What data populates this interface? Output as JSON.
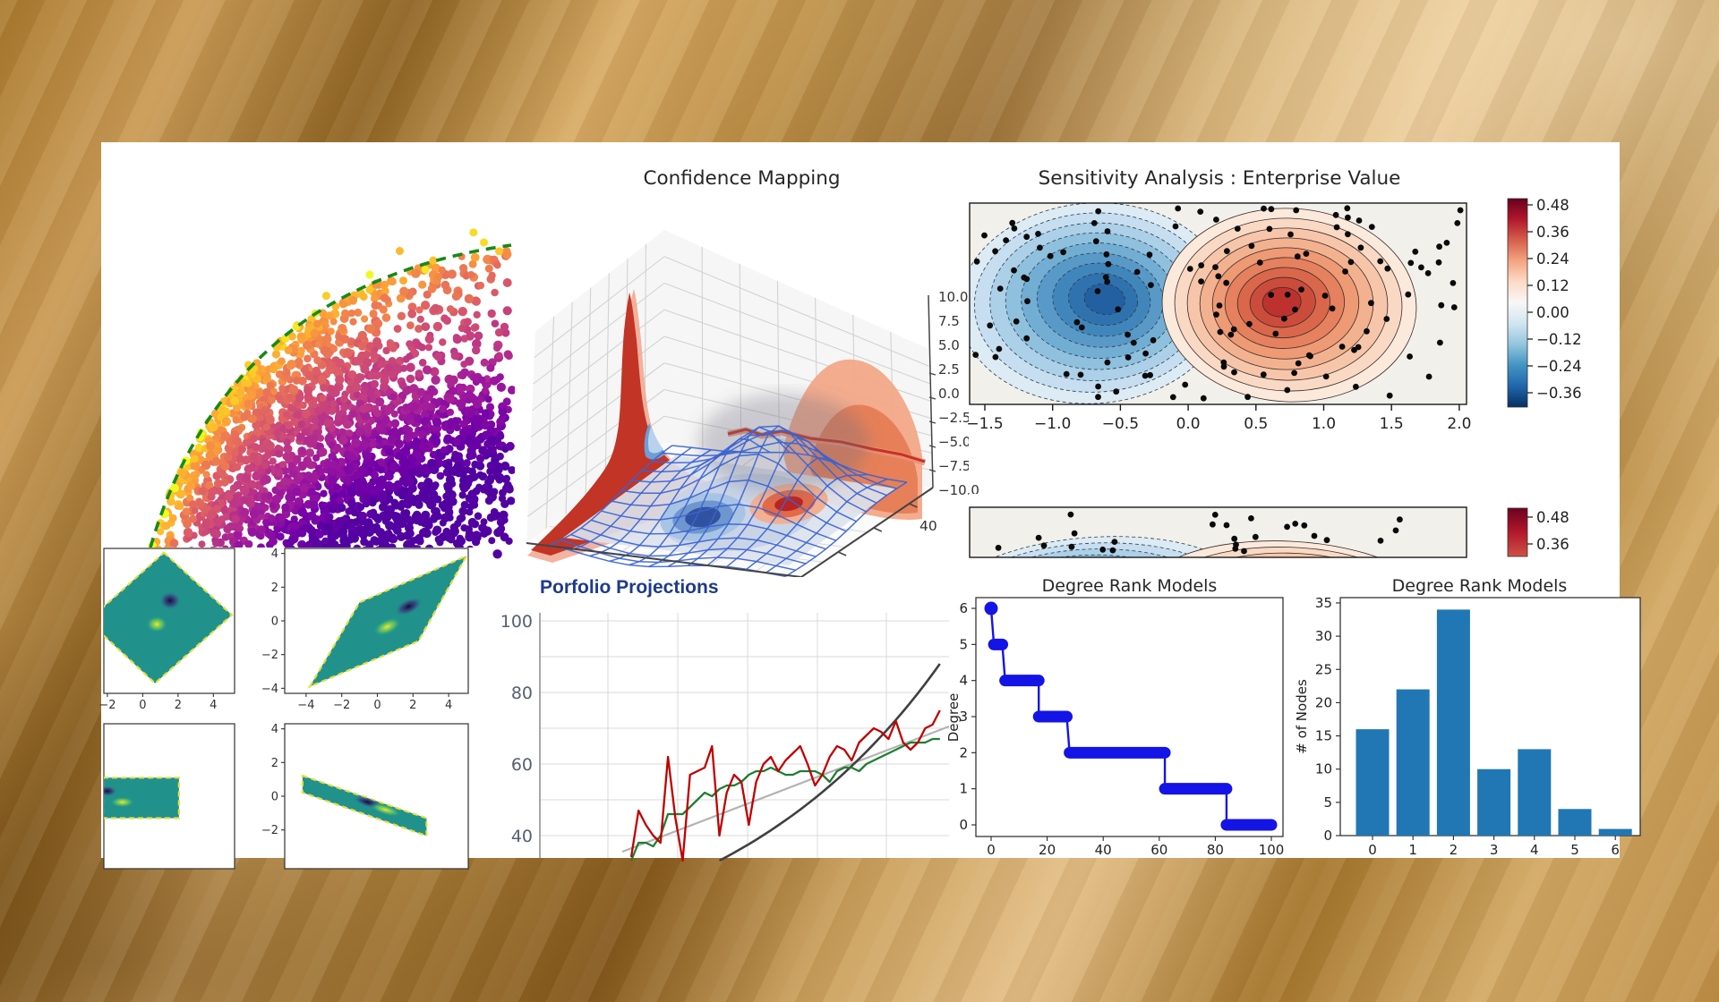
{
  "chart_data": [
    {
      "type": "scatter",
      "title": "",
      "colormap": "plasma",
      "description": "dense 2D point cloud bounded on the upper-left by a green dashed arc; color grades yellow at the arc to deep purple at lower right",
      "points": 2300,
      "outlier_points": 14,
      "boundary_color": "#168a16",
      "point_colors": [
        "#f0f921",
        "#fdc926",
        "#fb9f3a",
        "#ed7953",
        "#d8576b",
        "#bd3786",
        "#9c179e",
        "#7201a8",
        "#46039f",
        "#0d0887"
      ],
      "seed": 11
    },
    {
      "type": "3d-surface",
      "title": "Confidence Mapping",
      "z_ticks": [
        "10.0",
        "7.5",
        "5.0",
        "2.5",
        "0.0",
        "−2.5",
        "−5.0",
        "−7.5",
        "−10.0"
      ],
      "x_ticks": [
        "40"
      ],
      "wireframe_color": "#3b63d4",
      "wall_projection_colors": {
        "left_kde": "#c23425",
        "left_kde_light": "#f0a088",
        "left_kde_notch": "#6d9ed6",
        "right_hill": "#f3a888",
        "right_hill_core": "#e4784f",
        "ridge": "#c8321f",
        "floor_negative": "#31529e",
        "floor_positive": "#b92424"
      }
    },
    {
      "type": "contour",
      "title": "Sensitivity Analysis : Enterprise Value",
      "x_ticks": [
        "−1.5",
        "−1.0",
        "−0.5",
        "0.0",
        "0.5",
        "1.0",
        "1.5",
        "2.0"
      ],
      "xlim": [
        -1.6,
        2.05
      ],
      "colorbar_ticks": [
        "0.48",
        "0.36",
        "0.24",
        "0.12",
        "0.00",
        "−0.12",
        "−0.24",
        "−0.36"
      ],
      "colorbar_colors": [
        "#67001f",
        "#b2182b",
        "#d6604d",
        "#f4a582",
        "#fddbc7",
        "#f7f7f7",
        "#d1e5f0",
        "#92c5de",
        "#4393c3",
        "#2166ac",
        "#053061"
      ],
      "negative_center": {
        "x": -0.7,
        "core_color": "#2260a2"
      },
      "positive_center": {
        "x": 0.75,
        "core_color": "#a81c28"
      },
      "blue_levels": [
        "#dcebf4",
        "#c6def0",
        "#abd0e7",
        "#8fc0dd",
        "#72aed3",
        "#5899c7",
        "#4186bb",
        "#2f72ae",
        "#2260a2"
      ],
      "red_levels": [
        "#fbe9dc",
        "#f9d9c4",
        "#f7c6aa",
        "#f3b28f",
        "#ee9a75",
        "#e5815e",
        "#da674b",
        "#cc4c3b",
        "#bd322f"
      ],
      "overlay_points": 135,
      "levels": 9,
      "seed": 5
    },
    {
      "type": "contour",
      "title": "",
      "cropped": true,
      "colorbar_ticks": [
        "0.48",
        "0.36"
      ],
      "overlay_points": 26,
      "seed": 9
    },
    {
      "type": "heatmap",
      "fill_color": "#21918c",
      "edge_color": "#e4e13c",
      "blob_colors": {
        "negative": "#160a3e",
        "positive": "#f6e626"
      },
      "panels": [
        {
          "x_ticks": [
            "−2",
            "0",
            "2",
            "4"
          ],
          "x_tick_vals": [
            -2,
            0,
            2,
            4
          ],
          "y_ticks": [],
          "y_tick_vals": [],
          "xlim": [
            -2.2,
            5.2
          ],
          "ylim": [
            -4.3,
            4.3
          ],
          "polygon": [
            [
              1.2,
              4.05
            ],
            [
              5.05,
              0.35
            ],
            [
              0.7,
              -3.7
            ],
            [
              -3.1,
              0.0
            ]
          ],
          "blob_neg": {
            "c": [
              1.55,
              1.2
            ],
            "r": [
              0.62,
              0.55
            ],
            "rot": 0
          },
          "blob_pos": {
            "c": [
              0.8,
              -0.2
            ],
            "r": [
              0.62,
              0.5
            ],
            "rot": 0
          }
        },
        {
          "x_ticks": [
            "−4",
            "−2",
            "0",
            "2",
            "4"
          ],
          "x_tick_vals": [
            -4,
            -2,
            0,
            2,
            4
          ],
          "y_ticks": [
            "4",
            "2",
            "0",
            "−2",
            "−4"
          ],
          "y_tick_vals": [
            4,
            2,
            0,
            -2,
            -4
          ],
          "xlim": [
            -5.2,
            5.1
          ],
          "ylim": [
            -4.3,
            4.3
          ],
          "polygon": [
            [
              -3.8,
              -3.9
            ],
            [
              -1.0,
              1.1
            ],
            [
              5.0,
              3.85
            ],
            [
              2.3,
              -1.2
            ]
          ],
          "blob_neg": {
            "c": [
              1.75,
              0.85
            ],
            "r": [
              0.85,
              0.45
            ],
            "rot": 25
          },
          "blob_pos": {
            "c": [
              0.55,
              -0.35
            ],
            "r": [
              0.85,
              0.45
            ],
            "rot": 25
          }
        },
        {
          "x_ticks": [],
          "x_tick_vals": [],
          "y_ticks": [],
          "y_tick_vals": [],
          "xlim": [
            -2.2,
            5.2
          ],
          "ylim": [
            -4.3,
            4.3
          ],
          "polygon": [
            [
              -2.25,
              1.1
            ],
            [
              2.05,
              1.1
            ],
            [
              2.05,
              -1.3
            ],
            [
              -2.25,
              -1.3
            ]
          ],
          "blob_neg": {
            "c": [
              -2.0,
              0.3
            ],
            "r": [
              0.55,
              0.32
            ],
            "rot": 0
          },
          "blob_pos": {
            "c": [
              -1.15,
              -0.35
            ],
            "r": [
              0.7,
              0.32
            ],
            "rot": 0
          }
        },
        {
          "x_ticks": [],
          "x_tick_vals": [],
          "y_ticks": [
            "4",
            "2",
            "0",
            "−2"
          ],
          "y_tick_vals": [
            4,
            2,
            0,
            -2
          ],
          "xlim": [
            -5.2,
            5.1
          ],
          "ylim": [
            -4.3,
            4.3
          ],
          "polygon": [
            [
              -4.2,
              1.22
            ],
            [
              2.76,
              -1.3
            ],
            [
              2.76,
              -2.35
            ],
            [
              -4.2,
              0.22
            ]
          ],
          "blob_neg": {
            "c": [
              -0.55,
              -0.35
            ],
            "r": [
              0.85,
              0.3
            ],
            "rot": -17
          },
          "blob_pos": {
            "c": [
              0.45,
              -0.8
            ],
            "r": [
              0.95,
              0.3
            ],
            "rot": -17
          }
        }
      ]
    },
    {
      "type": "line",
      "title": "Porfolio Projections",
      "title_color": "#1f3a8a",
      "y_ticks": [
        "100",
        "80",
        "60",
        "40"
      ],
      "y_tick_vals": [
        100,
        80,
        60,
        40
      ],
      "ylim": [
        33,
        102
      ],
      "grid": true,
      "series": [
        {
          "name": "red-jagged",
          "color": "#c00000",
          "values": [
            34,
            47,
            43,
            40,
            38,
            62,
            45,
            33,
            57,
            58,
            59,
            65,
            40,
            52,
            57,
            55,
            43,
            55,
            60,
            62,
            58,
            61,
            63,
            65,
            60,
            54,
            57,
            62,
            65,
            64,
            61,
            66,
            68,
            70,
            69,
            67,
            72,
            66,
            64,
            66,
            70,
            71,
            75
          ]
        },
        {
          "name": "green-smooth",
          "color": "#1e7d32",
          "values": [
            33,
            38,
            38,
            37,
            40,
            46,
            46,
            46,
            48,
            50,
            52,
            51,
            53,
            54,
            54,
            55,
            57,
            58,
            58,
            59,
            58,
            57,
            57,
            58,
            58,
            58,
            57,
            55,
            58,
            59,
            59,
            58,
            60,
            61,
            62,
            63,
            64,
            65,
            66,
            66,
            66,
            67,
            67
          ]
        },
        {
          "name": "gray-linear",
          "color": "#b3b3b3",
          "start": 35.5,
          "end": 70.5
        },
        {
          "name": "black-curve",
          "color": "#404040",
          "shape": "exponential",
          "v0": 33,
          "v1": 88,
          "start_frac": 0.28
        }
      ]
    },
    {
      "type": "step-scatter",
      "title": "Degree Rank Models",
      "ylabel": "Degree",
      "x_ticks": [
        "0",
        "20",
        "40",
        "60",
        "80",
        "100"
      ],
      "x_tick_vals": [
        0,
        20,
        40,
        60,
        80,
        100
      ],
      "y_ticks": [
        "0",
        "1",
        "2",
        "3",
        "4",
        "5",
        "6"
      ],
      "y_tick_vals": [
        0,
        1,
        2,
        3,
        4,
        5,
        6
      ],
      "xlim": [
        0,
        100
      ],
      "ylim": [
        0,
        6
      ],
      "color": "#1414e6",
      "segments": [
        [
          0,
          0,
          6
        ],
        [
          1,
          4,
          5
        ],
        [
          5,
          17,
          4
        ],
        [
          17,
          27,
          3
        ],
        [
          28,
          62,
          2
        ],
        [
          62,
          84,
          1
        ],
        [
          84,
          100,
          0
        ]
      ]
    },
    {
      "type": "bar",
      "title": "Degree Rank Models",
      "ylabel": "# of Nodes",
      "categories": [
        "0",
        "1",
        "2",
        "3",
        "4",
        "5",
        "6"
      ],
      "values": [
        16,
        22,
        34,
        10,
        13,
        4,
        1
      ],
      "y_ticks": [
        "0",
        "5",
        "10",
        "15",
        "20",
        "25",
        "30",
        "35"
      ],
      "y_tick_vals": [
        0,
        5,
        10,
        15,
        20,
        25,
        30,
        35
      ],
      "ylim": [
        0,
        35
      ],
      "color": "#2077b4"
    }
  ]
}
